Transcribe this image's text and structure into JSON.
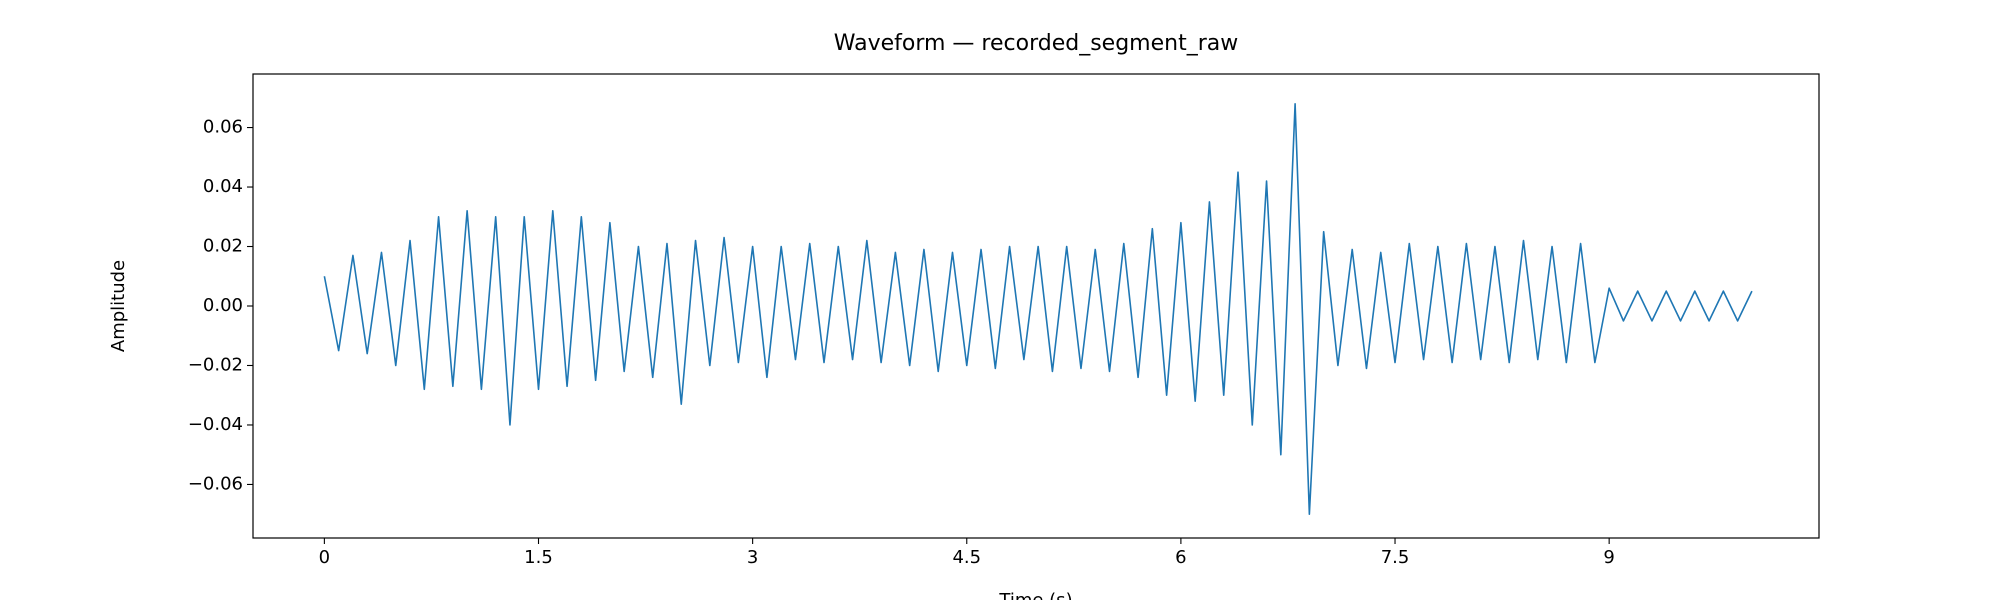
{
  "chart_data": {
    "type": "line",
    "title": "Waveform — recorded_segment_raw",
    "x_label": "Time (s)",
    "y_label": "Amplitude",
    "color": "#1f77b4",
    "xlim": [
      -0.5,
      10.47
    ],
    "ylim": [
      -0.078,
      0.078
    ],
    "xticks": [
      0,
      1.5,
      3,
      4.5,
      6,
      7.5,
      9
    ],
    "yticks": [
      {
        "value": -0.06,
        "label": "−0.06"
      },
      {
        "value": -0.04,
        "label": "−0.04"
      },
      {
        "value": -0.02,
        "label": "−0.02"
      },
      {
        "value": 0,
        "label": "0.00"
      },
      0.02,
      0.04,
      0.06
    ],
    "grid": false,
    "x": [
      0,
      0.1,
      0.2,
      0.3,
      0.4,
      0.5,
      0.6,
      0.7,
      0.8,
      0.9,
      1,
      1.1,
      1.2,
      1.3,
      1.4,
      1.5,
      1.6,
      1.7,
      1.8,
      1.9,
      2,
      2.1,
      2.2,
      2.3,
      2.4,
      2.5,
      2.6,
      2.7,
      2.8,
      2.9,
      3,
      3.1,
      3.2,
      3.3,
      3.4,
      3.5,
      3.6,
      3.7,
      3.8,
      3.9,
      4,
      4.1,
      4.2,
      4.3,
      4.4,
      4.5,
      4.6,
      4.7,
      4.8,
      4.9,
      5,
      5.1,
      5.2,
      5.3,
      5.4,
      5.5,
      5.6,
      5.7,
      5.8,
      5.9,
      6,
      6.1,
      6.2,
      6.3,
      6.4,
      6.5,
      6.6,
      6.7,
      6.8,
      6.9,
      7,
      7.1,
      7.2,
      7.3,
      7.4,
      7.5,
      7.6,
      7.7,
      7.8,
      7.9,
      8,
      8.1,
      8.2,
      8.3,
      8.4,
      8.5,
      8.6,
      8.7,
      8.8,
      8.9,
      9,
      9.1,
      9.2,
      9.3,
      9.4,
      9.5,
      9.6,
      9.7,
      9.8,
      9.9,
      10
    ],
    "values": [
      0.01,
      -0.015,
      0.017,
      -0.016,
      0.018,
      -0.02,
      0.022,
      -0.028,
      0.03,
      -0.027,
      0.032,
      -0.028,
      0.03,
      -0.04,
      0.03,
      -0.028,
      0.032,
      -0.027,
      0.03,
      -0.025,
      0.028,
      -0.022,
      0.02,
      -0.024,
      0.021,
      -0.033,
      0.022,
      -0.02,
      0.023,
      -0.019,
      0.02,
      -0.024,
      0.02,
      -0.018,
      0.021,
      -0.019,
      0.02,
      -0.018,
      0.022,
      -0.019,
      0.018,
      -0.02,
      0.019,
      -0.022,
      0.018,
      -0.02,
      0.019,
      -0.021,
      0.02,
      -0.018,
      0.02,
      -0.022,
      0.02,
      -0.021,
      0.019,
      -0.022,
      0.021,
      -0.024,
      0.026,
      -0.03,
      0.028,
      -0.032,
      0.035,
      -0.03,
      0.045,
      -0.04,
      0.042,
      -0.05,
      0.068,
      -0.07,
      0.025,
      -0.02,
      0.019,
      -0.021,
      0.018,
      -0.019,
      0.021,
      -0.018,
      0.02,
      -0.019,
      0.021,
      -0.018,
      0.02,
      -0.019,
      0.022,
      -0.018,
      0.02,
      -0.019,
      0.021,
      -0.019,
      0.006,
      -0.005,
      0.005,
      -0.005,
      0.005,
      -0.005,
      0.005,
      -0.005,
      0.005,
      -0.005,
      0.005
    ]
  }
}
